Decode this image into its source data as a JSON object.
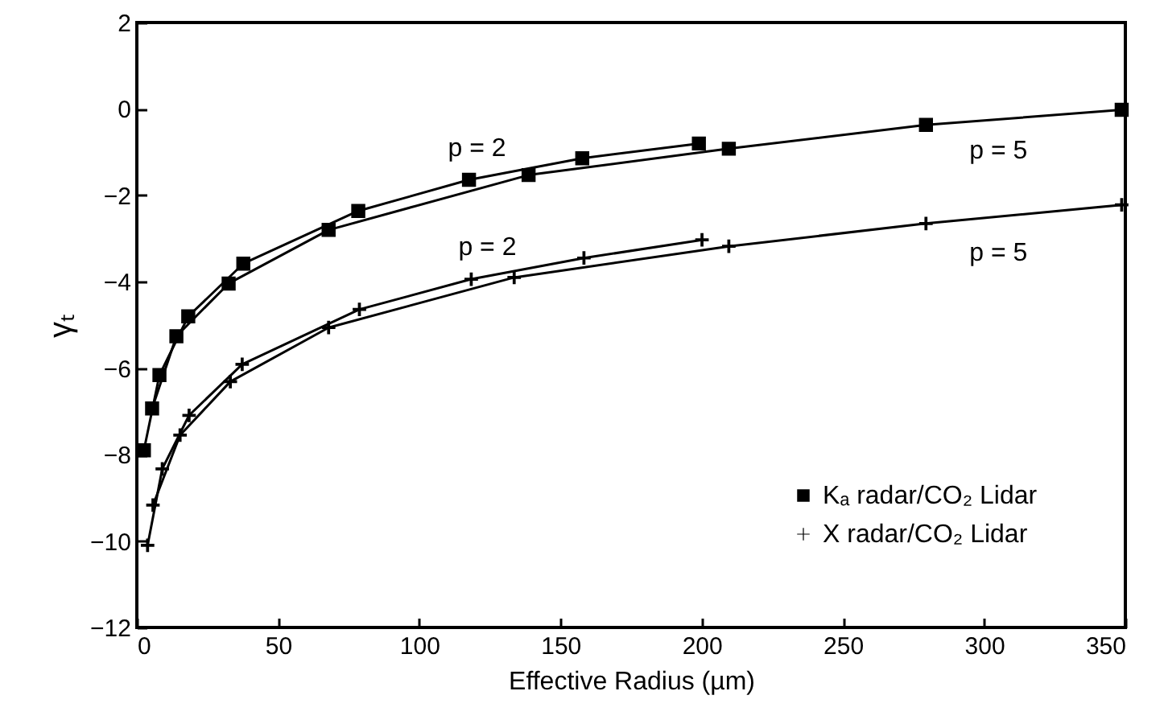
{
  "chart_data": {
    "type": "line",
    "xlabel": "Effective Radius (µm)",
    "ylabel": "γₜ",
    "xlim": [
      0,
      350
    ],
    "xticks": [
      0,
      50,
      100,
      150,
      200,
      250,
      300,
      350
    ],
    "ylim": [
      -12,
      2
    ],
    "yticks": [
      -12,
      -10,
      -8,
      -6,
      -4,
      -2,
      0,
      2
    ],
    "grid": false,
    "legend": "bottom right",
    "series": [
      {
        "name": "Kₐ  radar/CO₂ Lidar",
        "color": "#000000",
        "marker": "square",
        "x": [
          2.5,
          8.0,
          18.2,
          37.7,
          78.4,
          117.6,
          157.7,
          199.0
        ],
        "values": [
          -7.9,
          -6.16,
          -4.8,
          -3.58,
          -2.36,
          -1.64,
          -1.14,
          -0.8
        ]
      },
      {
        "color": "#000000",
        "marker": "square",
        "x": [
          5.4,
          14.0,
          32.5,
          67.9,
          138.7,
          209.6,
          279.4,
          348.7
        ],
        "values": [
          -6.93,
          -5.26,
          -4.04,
          -2.8,
          -1.53,
          -0.92,
          -0.37,
          -0.02
        ]
      },
      {
        "name": "X  radar/CO₂ Lidar",
        "color": "#000000",
        "marker": "cross",
        "x": [
          3.8,
          9.0,
          18.5,
          37.3,
          78.8,
          118.4,
          158.3,
          200.1
        ],
        "values": [
          -10.1,
          -8.33,
          -7.09,
          -5.91,
          -4.64,
          -3.94,
          -3.45,
          -3.03
        ]
      },
      {
        "color": "#000000",
        "marker": "cross",
        "x": [
          5.7,
          15.3,
          33.1,
          67.9,
          133.6,
          209.6,
          279.4,
          348.7
        ],
        "values": [
          -9.17,
          -7.55,
          -6.31,
          -5.06,
          -3.9,
          -3.18,
          -2.65,
          -2.22
        ]
      }
    ],
    "annotations": [
      {
        "text": "p = 2",
        "x": 117.6,
        "y": -1.64
      },
      {
        "text": "p = 2",
        "x": 118.4,
        "y": -3.94
      },
      {
        "text": "p = 5",
        "x": 279.4,
        "y": -0.37
      },
      {
        "text": "p = 5",
        "x": 279.4,
        "y": -2.65
      }
    ]
  }
}
